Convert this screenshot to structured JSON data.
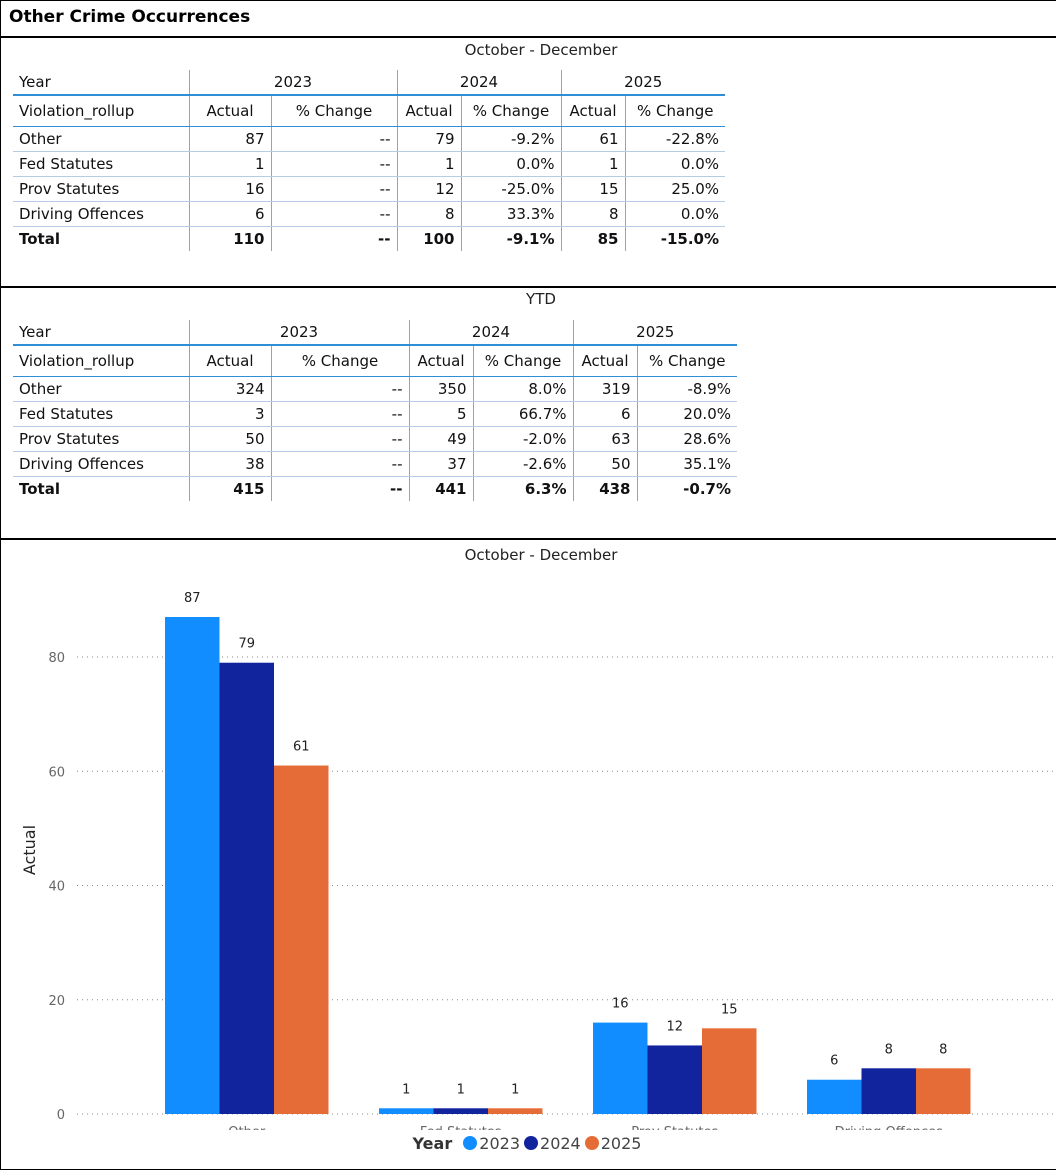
{
  "page_title": "Other Crime Occurrences",
  "table1": {
    "title": "October - December",
    "year_label": "Year",
    "rollup_label": "Violation_rollup",
    "years": [
      "2023",
      "2024",
      "2025"
    ],
    "actual_label": "Actual",
    "change_label": "% Change",
    "rows": [
      {
        "name": "Other",
        "cells": [
          "87",
          "--",
          "79",
          "-9.2%",
          "61",
          "-22.8%"
        ]
      },
      {
        "name": "Fed Statutes",
        "cells": [
          "1",
          "--",
          "1",
          "0.0%",
          "1",
          "0.0%"
        ]
      },
      {
        "name": "Prov Statutes",
        "cells": [
          "16",
          "--",
          "12",
          "-25.0%",
          "15",
          "25.0%"
        ]
      },
      {
        "name": "Driving Offences",
        "cells": [
          "6",
          "--",
          "8",
          "33.3%",
          "8",
          "0.0%"
        ]
      }
    ],
    "total": {
      "name": "Total",
      "cells": [
        "110",
        "--",
        "100",
        "-9.1%",
        "85",
        "-15.0%"
      ]
    }
  },
  "table2": {
    "title": "YTD",
    "year_label": "Year",
    "rollup_label": "Violation_rollup",
    "years": [
      "2023",
      "2024",
      "2025"
    ],
    "actual_label": "Actual",
    "change_label": "% Change",
    "rows": [
      {
        "name": "Other",
        "cells": [
          "324",
          "--",
          "350",
          "8.0%",
          "319",
          "-8.9%"
        ]
      },
      {
        "name": "Fed Statutes",
        "cells": [
          "3",
          "--",
          "5",
          "66.7%",
          "6",
          "20.0%"
        ]
      },
      {
        "name": "Prov Statutes",
        "cells": [
          "50",
          "--",
          "49",
          "-2.0%",
          "63",
          "28.6%"
        ]
      },
      {
        "name": "Driving Offences",
        "cells": [
          "38",
          "--",
          "37",
          "-2.6%",
          "50",
          "35.1%"
        ]
      }
    ],
    "total": {
      "name": "Total",
      "cells": [
        "415",
        "--",
        "441",
        "6.3%",
        "438",
        "-0.7%"
      ]
    }
  },
  "chart_data": {
    "type": "bar",
    "title": "October - December",
    "xlabel": "",
    "ylabel": "Actual",
    "ylim": [
      0,
      100
    ],
    "yticks": [
      0,
      20,
      40,
      60,
      80
    ],
    "grid": true,
    "legend_position": "bottom",
    "legend_title": "Year",
    "categories": [
      "Other",
      "Fed Statutes",
      "Prov Statutes",
      "Driving Offences"
    ],
    "series": [
      {
        "name": "2023",
        "color": "#118DFF",
        "values": [
          87,
          1,
          16,
          6
        ]
      },
      {
        "name": "2024",
        "color": "#12239E",
        "values": [
          79,
          1,
          12,
          8
        ]
      },
      {
        "name": "2025",
        "color": "#E66C37",
        "values": [
          61,
          1,
          15,
          8
        ]
      }
    ]
  }
}
